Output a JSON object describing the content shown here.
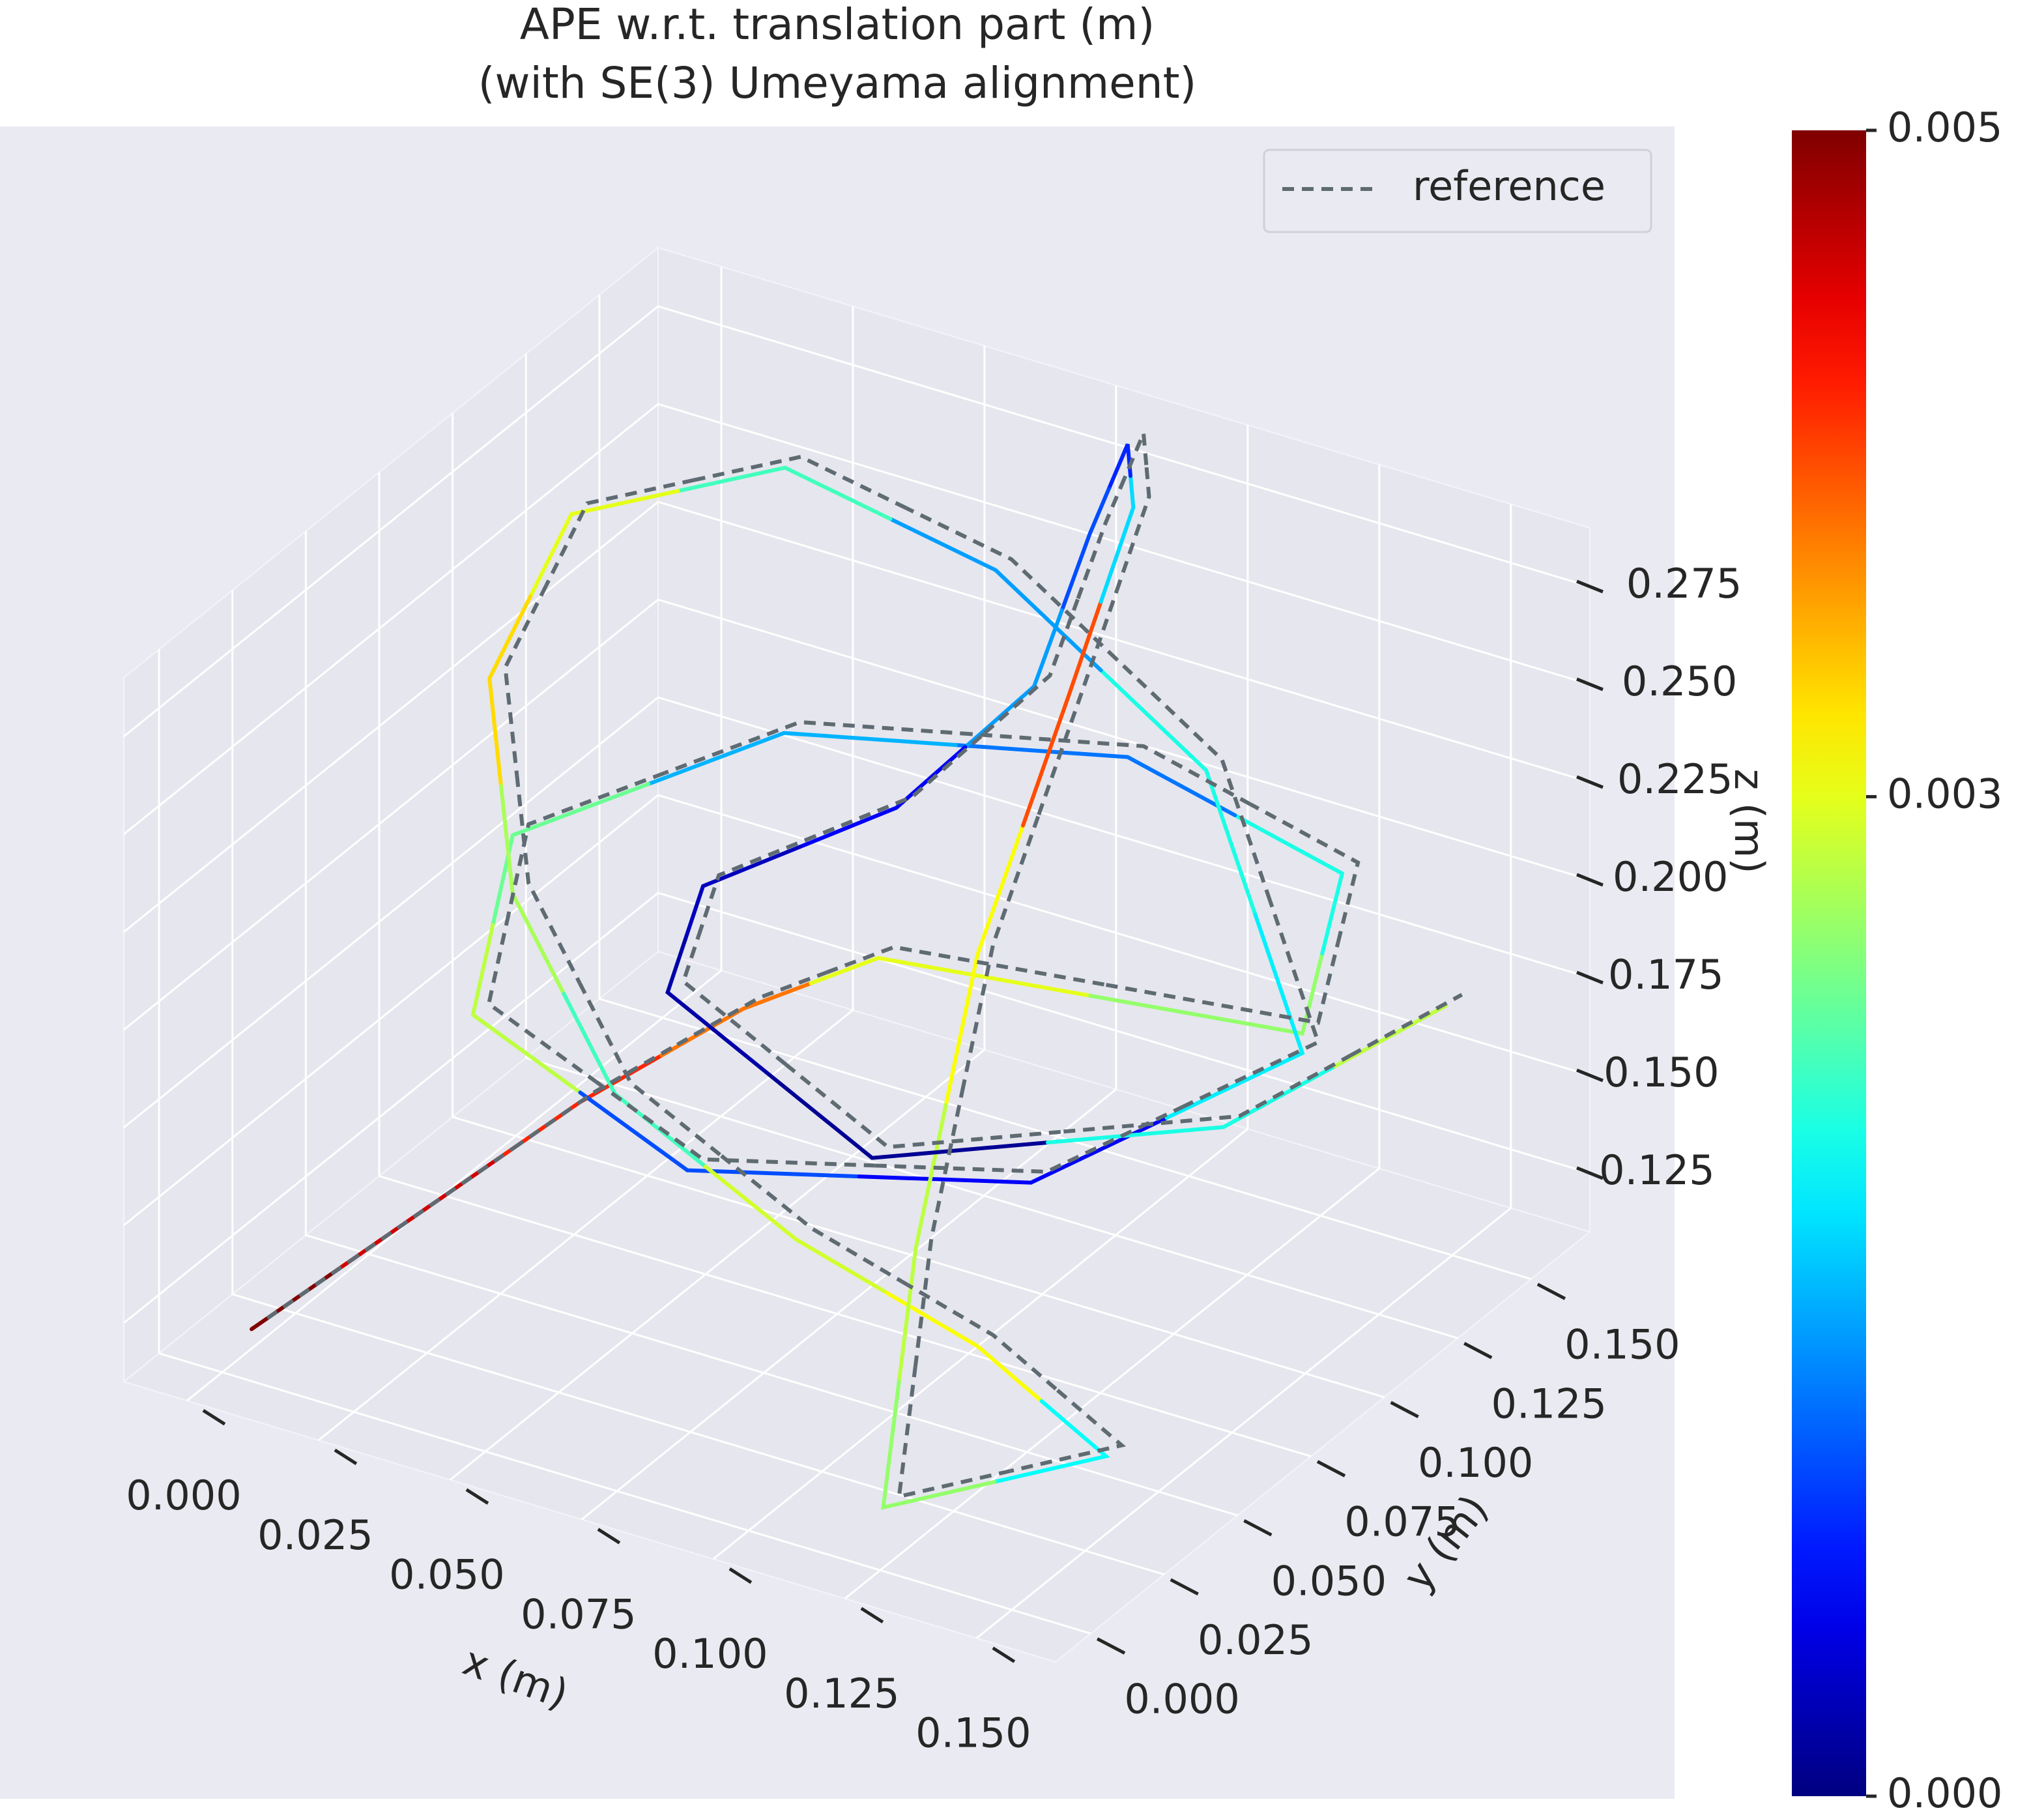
{
  "chart_data": {
    "type": "line3d",
    "title": "APE w.r.t. translation part (m)",
    "subtitle": "(with SE(3) Umeyama alignment)",
    "xlabel": "x (m)",
    "ylabel": "y (m)",
    "zlabel": "z (m)",
    "xlim": [
      -0.012,
      0.165
    ],
    "ylim": [
      -0.012,
      0.17
    ],
    "zlim": [
      0.11,
      0.29
    ],
    "xticks": [
      {
        "value": 0,
        "label": "0.000"
      },
      {
        "value": 0.025,
        "label": "0.025"
      },
      {
        "value": 0.05,
        "label": "0.050"
      },
      {
        "value": 0.075,
        "label": "0.075"
      },
      {
        "value": 0.1,
        "label": "0.100"
      },
      {
        "value": 0.125,
        "label": "0.125"
      },
      {
        "value": 0.15,
        "label": "0.150"
      }
    ],
    "yticks": [
      {
        "value": 0,
        "label": "0.000"
      },
      {
        "value": 0.025,
        "label": "0.025"
      },
      {
        "value": 0.05,
        "label": "0.050"
      },
      {
        "value": 0.075,
        "label": "0.075"
      },
      {
        "value": 0.1,
        "label": "0.100"
      },
      {
        "value": 0.125,
        "label": "0.125"
      },
      {
        "value": 0.15,
        "label": "0.150"
      }
    ],
    "zticks": [
      {
        "value": 0.125,
        "label": "0.125"
      },
      {
        "value": 0.15,
        "label": "0.150"
      },
      {
        "value": 0.175,
        "label": "0.175"
      },
      {
        "value": 0.2,
        "label": "0.200"
      },
      {
        "value": 0.225,
        "label": "0.225"
      },
      {
        "value": 0.25,
        "label": "0.250"
      },
      {
        "value": 0.275,
        "label": "0.275"
      }
    ],
    "grid": true,
    "legend": "upper right",
    "colorbar": {
      "cmap": "jet",
      "lim": [
        0,
        0.005
      ],
      "ticks": [
        {
          "value": 0,
          "label": "0.000"
        },
        {
          "value": 0.003,
          "label": "0.003"
        },
        {
          "value": 0.005,
          "label": "0.005"
        }
      ]
    },
    "series": [
      {
        "x": [
          0.0,
          0.02,
          0.04,
          0.06,
          0.08,
          0.155,
          0.133,
          0.08,
          0.027,
          0.005,
          0.027,
          0.08,
          0.133,
          0.155,
          0.12,
          0.08,
          0.04,
          0.005,
          -0.005,
          0.005,
          0.03,
          0.07,
          0.11,
          0.14,
          0.12,
          0.115,
          0.11,
          0.105,
          0.095,
          0.08,
          0.07,
          0.065,
          0.05,
          0.03,
          0.04,
          0.09,
          0.14,
          0.16
        ],
        "y": [
          0.01,
          0.03,
          0.05,
          0.07,
          0.08,
          0.09,
          0.143,
          0.165,
          0.143,
          0.09,
          0.037,
          0.015,
          0.037,
          0.09,
          0.12,
          0.12,
          0.12,
          0.11,
          0.1,
          0.09,
          0.08,
          0.07,
          0.06,
          0.05,
          0.01,
          0.03,
          0.06,
          0.1,
          0.14,
          0.165,
          0.17,
          0.16,
          0.14,
          0.11,
          0.08,
          0.06,
          0.09,
          0.13
        ],
        "z": [
          0.115,
          0.14,
          0.165,
          0.185,
          0.2,
          0.205,
          0.205,
          0.2,
          0.198,
          0.195,
          0.19,
          0.185,
          0.19,
          0.2,
          0.24,
          0.275,
          0.285,
          0.265,
          0.225,
          0.18,
          0.145,
          0.13,
          0.125,
          0.115,
          0.118,
          0.17,
          0.225,
          0.265,
          0.285,
          0.28,
          0.25,
          0.215,
          0.19,
          0.18,
          0.175,
          0.165,
          0.175,
          0.19
        ],
        "error": [
          0.005,
          0.0046,
          0.0042,
          0.0038,
          0.003,
          0.0026,
          0.002,
          0.0012,
          0.0015,
          0.0024,
          0.0028,
          0.001,
          0.0006,
          0.0018,
          0.002,
          0.0014,
          0.0022,
          0.003,
          0.0033,
          0.0027,
          0.0022,
          0.0029,
          0.0031,
          0.0019,
          0.0026,
          0.0028,
          0.0031,
          0.004,
          0.0017,
          0.0008,
          0.001,
          0.0014,
          0.0006,
          0.0003,
          0.0002,
          0.0001,
          0.002,
          0.0028
        ]
      },
      {
        "name": "reference",
        "color": "#5f6b72",
        "dashed": true,
        "x": [
          0.003,
          0.023,
          0.043,
          0.063,
          0.083,
          0.158,
          0.136,
          0.083,
          0.03,
          0.008,
          0.03,
          0.083,
          0.136,
          0.158,
          0.123,
          0.083,
          0.043,
          0.008,
          -0.002,
          0.008,
          0.033,
          0.073,
          0.113,
          0.143,
          0.123,
          0.118,
          0.113,
          0.108,
          0.098,
          0.083,
          0.073,
          0.068,
          0.053,
          0.033,
          0.043,
          0.093,
          0.143,
          0.163
        ],
        "y": [
          0.01,
          0.03,
          0.05,
          0.07,
          0.08,
          0.09,
          0.143,
          0.165,
          0.143,
          0.09,
          0.037,
          0.015,
          0.037,
          0.09,
          0.12,
          0.12,
          0.12,
          0.11,
          0.1,
          0.09,
          0.08,
          0.07,
          0.06,
          0.05,
          0.01,
          0.03,
          0.06,
          0.1,
          0.14,
          0.165,
          0.17,
          0.16,
          0.14,
          0.11,
          0.08,
          0.06,
          0.09,
          0.13
        ],
        "z": [
          0.119,
          0.144,
          0.169,
          0.189,
          0.204,
          0.209,
          0.209,
          0.204,
          0.202,
          0.199,
          0.194,
          0.189,
          0.194,
          0.204,
          0.244,
          0.279,
          0.289,
          0.269,
          0.229,
          0.184,
          0.149,
          0.134,
          0.129,
          0.119,
          0.122,
          0.174,
          0.229,
          0.269,
          0.289,
          0.284,
          0.254,
          0.219,
          0.194,
          0.184,
          0.179,
          0.169,
          0.179,
          0.194
        ]
      }
    ]
  }
}
